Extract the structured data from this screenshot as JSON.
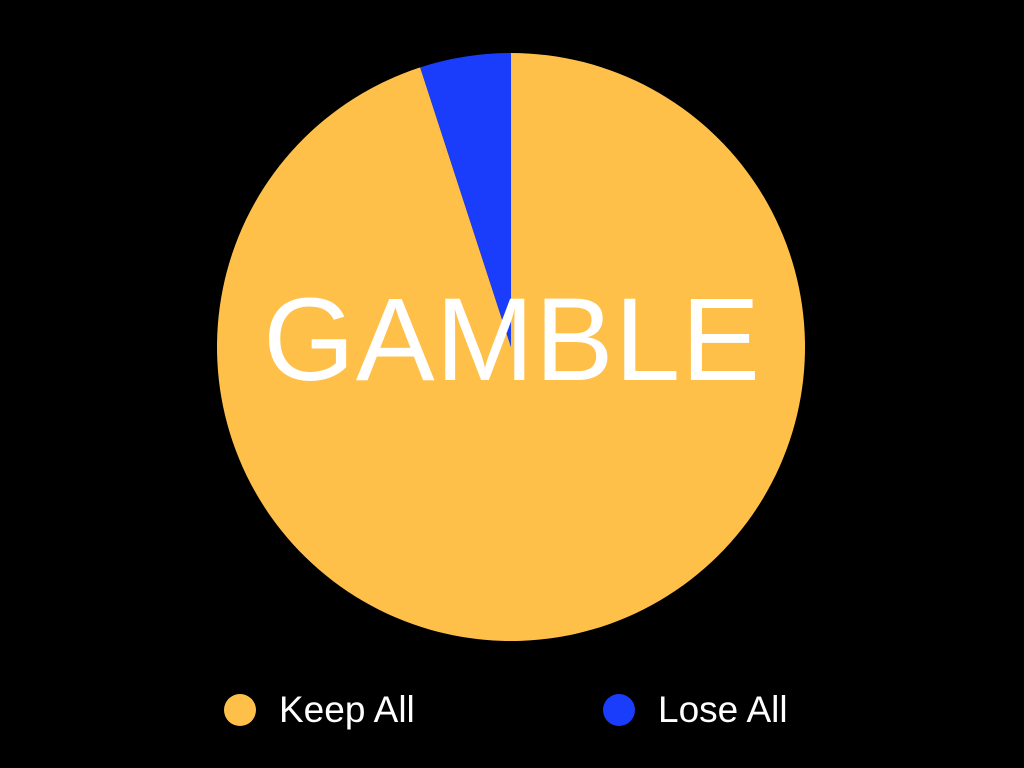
{
  "slide": {
    "title": "GAMBLE"
  },
  "colors": {
    "background": "#000000",
    "keep": "#FFC04A",
    "lose": "#1A3DFB",
    "text": "#FFFFFF"
  },
  "chart_data": {
    "type": "pie",
    "categories": [
      "Keep All",
      "Lose All"
    ],
    "values": [
      95,
      5
    ],
    "legend_position": "bottom",
    "series": [
      {
        "name": "Keep All",
        "value": 95,
        "color": "#FFC04A"
      },
      {
        "name": "Lose All",
        "value": 5,
        "color": "#1A3DFB"
      }
    ]
  },
  "legend": {
    "items": [
      {
        "label": "Keep All",
        "color": "#FFC04A"
      },
      {
        "label": "Lose All",
        "color": "#1A3DFB"
      }
    ]
  }
}
